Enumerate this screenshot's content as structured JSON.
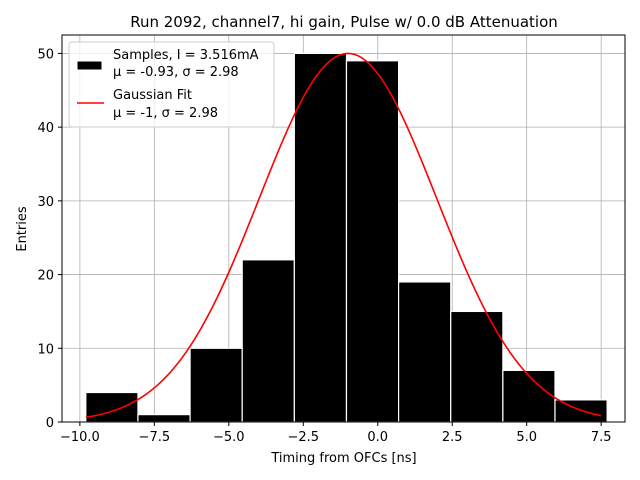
{
  "chart_data": {
    "type": "bar",
    "title": "Run 2092, channel7, hi gain, Pulse w/ 0.0 dB Attenuation",
    "xlabel": "Timing from OFCs [ns]",
    "ylabel": "Entries",
    "xlim": [
      -10.6,
      8.3
    ],
    "ylim": [
      0,
      52.5
    ],
    "xticks": [
      -10,
      -7.5,
      -5,
      -2.5,
      0,
      2.5,
      5,
      7.5
    ],
    "xtick_labels": [
      "−10.0",
      "−7.5",
      "−5.0",
      "−2.5",
      "0.0",
      "2.5",
      "5.0",
      "7.5"
    ],
    "yticks": [
      0,
      10,
      20,
      30,
      40,
      50
    ],
    "ytick_labels": [
      "0",
      "10",
      "20",
      "30",
      "40",
      "50"
    ],
    "grid": true,
    "histogram": {
      "bin_edges": [
        -9.8,
        -8.05,
        -6.3,
        -4.55,
        -2.8,
        -1.05,
        0.7,
        2.45,
        4.2,
        5.95,
        7.7
      ],
      "counts": [
        4,
        1,
        10,
        22,
        50,
        49,
        19,
        15,
        7,
        3
      ],
      "color": "#000000",
      "edgecolor": "#ffffff"
    },
    "fit": {
      "type": "gaussian",
      "amplitude": 50,
      "mu": -1,
      "sigma": 2.98,
      "x_range": [
        -9.8,
        7.5
      ],
      "color": "#ff0000"
    },
    "legend": {
      "position": "top-left",
      "entries": [
        {
          "kind": "patch",
          "color": "#000000",
          "line1": "Samples, I = 3.516mA",
          "line2": "μ = -0.93, σ = 2.98"
        },
        {
          "kind": "line",
          "color": "#ff0000",
          "line1": "Gaussian Fit",
          "line2": "μ = -1, σ = 2.98"
        }
      ]
    }
  }
}
